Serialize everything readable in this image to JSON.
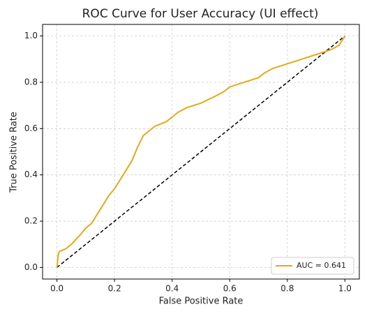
{
  "chart_data": {
    "type": "line",
    "title": "ROC Curve for User Accuracy (UI effect)",
    "x_label": "False Positive Rate",
    "y_label": "True Positive Rate",
    "series": [
      {
        "name": "AUC = 0.641",
        "color": "#e6a817",
        "x": [
          0,
          0.005,
          0.01,
          0.03,
          0.05,
          0.08,
          0.1,
          0.12,
          0.15,
          0.18,
          0.2,
          0.22,
          0.24,
          0.26,
          0.28,
          0.3,
          0.32,
          0.34,
          0.38,
          0.4,
          0.42,
          0.45,
          0.5,
          0.55,
          0.58,
          0.6,
          0.65,
          0.7,
          0.72,
          0.75,
          0.8,
          0.85,
          0.9,
          0.95,
          0.98,
          1
        ],
        "values": [
          0,
          0.06,
          0.07,
          0.08,
          0.1,
          0.14,
          0.17,
          0.19,
          0.25,
          0.31,
          0.34,
          0.38,
          0.42,
          0.46,
          0.52,
          0.57,
          0.59,
          0.61,
          0.63,
          0.65,
          0.67,
          0.69,
          0.71,
          0.74,
          0.76,
          0.78,
          0.8,
          0.82,
          0.84,
          0.86,
          0.88,
          0.9,
          0.92,
          0.94,
          0.96,
          1
        ]
      }
    ],
    "diagonal": {
      "color": "#000000",
      "x": [
        0,
        1
      ],
      "values": [
        0,
        1
      ]
    },
    "xlim": [
      -0.05,
      1.05
    ],
    "ylim": [
      -0.05,
      1.05
    ],
    "xticks": [
      {
        "value": 0,
        "label": "0.0"
      },
      {
        "value": 0.2,
        "label": "0.2"
      },
      {
        "value": 0.4,
        "label": "0.4"
      },
      {
        "value": 0.6,
        "label": "0.6"
      },
      {
        "value": 0.8,
        "label": "0.8"
      },
      {
        "value": 1,
        "label": "1.0"
      }
    ],
    "yticks": [
      {
        "value": 0,
        "label": "0.0"
      },
      {
        "value": 0.2,
        "label": "0.2"
      },
      {
        "value": 0.4,
        "label": "0.4"
      },
      {
        "value": 0.6,
        "label": "0.6"
      },
      {
        "value": 0.8,
        "label": "0.8"
      },
      {
        "value": 1,
        "label": "1.0"
      }
    ],
    "grid": true,
    "legend": "lower right"
  }
}
